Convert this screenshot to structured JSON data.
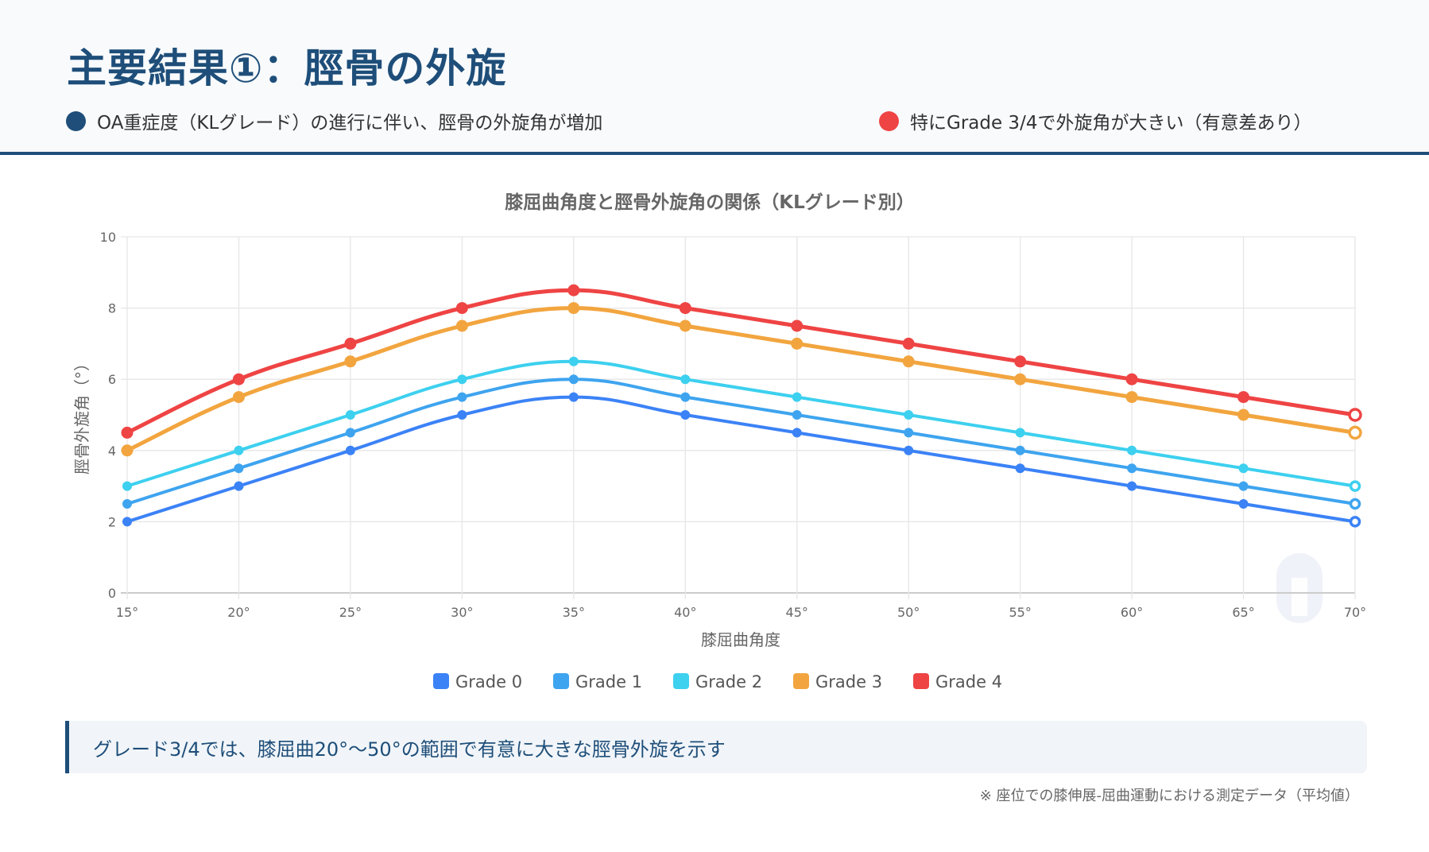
{
  "header": {
    "title": "主要結果①：脛骨の外旋",
    "points": [
      {
        "text": "OA重症度（KLグレード）の進行に伴い、脛骨の外旋角が増加",
        "color": "#1e4e79"
      },
      {
        "text": "特にGrade 3/4で外旋角が大きい（有意差あり）",
        "color": "#ef4444"
      }
    ]
  },
  "chart_data": {
    "type": "line",
    "title": "膝屈曲角度と脛骨外旋角の関係（KLグレード別）",
    "xlabel": "膝屈曲角度",
    "ylabel": "脛骨外旋角（°）",
    "x": [
      15,
      20,
      25,
      30,
      35,
      40,
      45,
      50,
      55,
      60,
      65,
      70
    ],
    "x_tick_labels": [
      "15°",
      "20°",
      "25°",
      "30°",
      "35°",
      "40°",
      "45°",
      "50°",
      "55°",
      "60°",
      "65°",
      "70°"
    ],
    "ylim": [
      0,
      10
    ],
    "y_ticks": [
      0,
      2,
      4,
      6,
      8,
      10
    ],
    "grid": true,
    "legend_position": "bottom",
    "series": [
      {
        "name": "Grade 0",
        "color": "#3b82f6",
        "values": [
          2,
          3,
          4,
          5,
          5.5,
          5,
          4.5,
          4,
          3.5,
          3,
          2.5,
          2
        ]
      },
      {
        "name": "Grade 1",
        "color": "#3ea4ef",
        "values": [
          2.5,
          3.5,
          4.5,
          5.5,
          6,
          5.5,
          5,
          4.5,
          4,
          3.5,
          3,
          2.5
        ]
      },
      {
        "name": "Grade 2",
        "color": "#3dd0ef",
        "values": [
          3,
          4,
          5,
          6,
          6.5,
          6,
          5.5,
          5,
          4.5,
          4,
          3.5,
          3
        ]
      },
      {
        "name": "Grade 3",
        "color": "#f2a53f",
        "values": [
          4,
          5.5,
          6.5,
          7.5,
          8,
          7.5,
          7,
          6.5,
          6,
          5.5,
          5,
          4.5
        ]
      },
      {
        "name": "Grade 4",
        "color": "#ef4444",
        "values": [
          4.5,
          6,
          7,
          8,
          8.5,
          8,
          7.5,
          7,
          6.5,
          6,
          5.5,
          5
        ]
      }
    ]
  },
  "callout": {
    "text": "グレード3/4では、膝屈曲20°〜50°の範囲で有意に大きな脛骨外旋を示す"
  },
  "footnote": {
    "text": "※ 座位での膝伸展-屈曲運動における測定データ（平均値）"
  },
  "watermark": {
    "icon": "bone-icon"
  }
}
